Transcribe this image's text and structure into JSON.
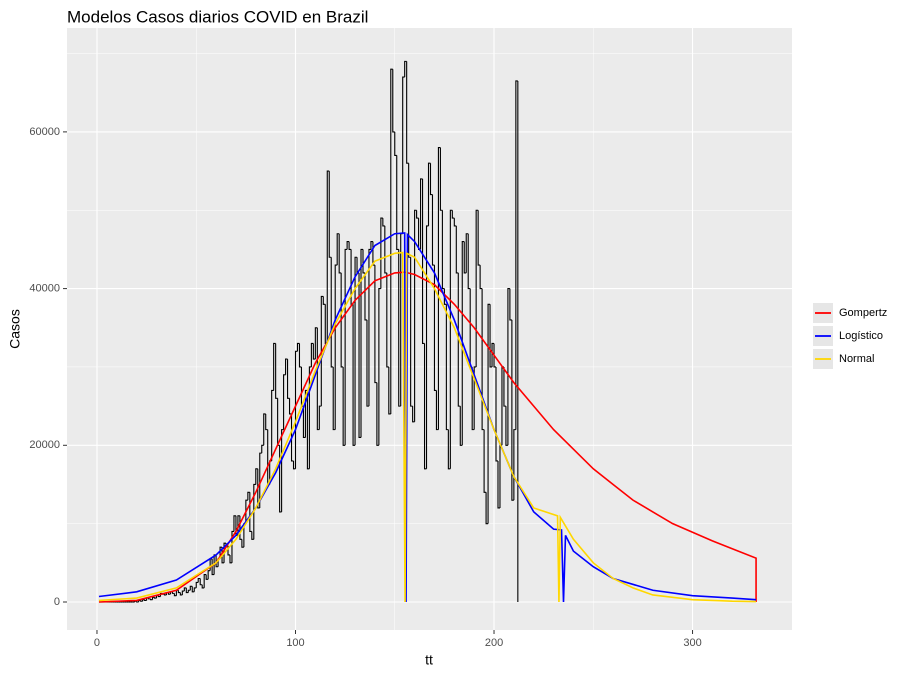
{
  "chart_data": {
    "type": "line",
    "title": "Modelos Casos diarios COVID en Brazil",
    "x_label": "tt",
    "y_label": "Casos",
    "xlim": [
      -15.1,
      350.1
    ],
    "ylim": [
      -3574,
      73260
    ],
    "xticks": [
      0,
      100,
      200,
      300
    ],
    "yticks": [
      0,
      20000,
      40000,
      60000
    ],
    "x_minor_grid": [
      50,
      150,
      250
    ],
    "y_minor_grid": [
      10000,
      30000,
      50000,
      70000
    ],
    "grid": true,
    "legend_position": "right",
    "observed": {
      "color": "#000000",
      "x": [
        1,
        2,
        3,
        4,
        5,
        6,
        7,
        8,
        9,
        10,
        11,
        12,
        13,
        14,
        15,
        16,
        17,
        18,
        19,
        20,
        21,
        22,
        23,
        24,
        25,
        26,
        27,
        28,
        29,
        30,
        31,
        32,
        33,
        34,
        35,
        36,
        37,
        38,
        39,
        40,
        41,
        42,
        43,
        44,
        45,
        46,
        47,
        48,
        49,
        50,
        51,
        52,
        53,
        54,
        55,
        56,
        57,
        58,
        59,
        60,
        61,
        62,
        63,
        64,
        65,
        66,
        67,
        68,
        69,
        70,
        71,
        72,
        73,
        74,
        75,
        76,
        77,
        78,
        79,
        80,
        81,
        82,
        83,
        84,
        85,
        86,
        87,
        88,
        89,
        90,
        91,
        92,
        93,
        94,
        95,
        96,
        97,
        98,
        99,
        100,
        101,
        102,
        103,
        104,
        105,
        106,
        107,
        108,
        109,
        110,
        111,
        112,
        113,
        114,
        115,
        116,
        117,
        118,
        119,
        120,
        121,
        122,
        123,
        124,
        125,
        126,
        127,
        128,
        129,
        130,
        131,
        132,
        133,
        134,
        135,
        136,
        137,
        138,
        139,
        140,
        141,
        142,
        143,
        144,
        145,
        146,
        147,
        148,
        149,
        150,
        151,
        152,
        153,
        154,
        155,
        156,
        157,
        158,
        159,
        160,
        161,
        162,
        163,
        164,
        165,
        166,
        167,
        168,
        169,
        170,
        171,
        172,
        173,
        174,
        175,
        176,
        177,
        178,
        179,
        180,
        181,
        182,
        183,
        184,
        185,
        186,
        187,
        188,
        189,
        190,
        191,
        192,
        193,
        194,
        195,
        196,
        197,
        198,
        199,
        200,
        201,
        202,
        203,
        204,
        205,
        206,
        207,
        208,
        209,
        210,
        211,
        212
      ],
      "values": [
        0,
        0,
        0,
        0,
        0,
        0,
        0,
        0,
        0,
        0,
        0,
        0,
        0,
        0,
        0,
        0,
        0,
        0,
        100,
        0,
        200,
        100,
        300,
        200,
        500,
        400,
        300,
        600,
        500,
        800,
        700,
        1100,
        1000,
        900,
        1200,
        1000,
        1300,
        1100,
        800,
        1500,
        1200,
        900,
        1400,
        1800,
        1200,
        1500,
        2000,
        1300,
        1800,
        2500,
        3000,
        2200,
        1800,
        3500,
        2900,
        4000,
        5500,
        3500,
        6000,
        4500,
        5500,
        7000,
        5000,
        7500,
        7200,
        6000,
        5000,
        9000,
        11000,
        8500,
        11000,
        8000,
        7000,
        10000,
        13000,
        14000,
        9000,
        8000,
        15000,
        17000,
        12000,
        19000,
        20000,
        24000,
        22000,
        15000,
        18000,
        27000,
        33000,
        26000,
        20000,
        11500,
        22000,
        29000,
        31000,
        26000,
        24000,
        18000,
        17000,
        32000,
        33000,
        30000,
        25000,
        21000,
        27000,
        17000,
        30000,
        33000,
        31000,
        35000,
        22000,
        25000,
        39000,
        38000,
        33000,
        55000,
        44000,
        30000,
        22000,
        43000,
        47000,
        42000,
        30000,
        20000,
        45000,
        46000,
        45000,
        38000,
        20000,
        44000,
        42000,
        21000,
        45000,
        42000,
        36000,
        25000,
        45000,
        46000,
        43000,
        28000,
        20000,
        40000,
        49000,
        48000,
        42000,
        30000,
        24000,
        68000,
        60000,
        57000,
        45000,
        25000,
        47000,
        67000,
        69000,
        56000,
        44000,
        25000,
        23000,
        50000,
        49000,
        45000,
        54000,
        33000,
        17000,
        48000,
        56000,
        52000,
        43000,
        27000,
        22000,
        58000,
        50000,
        40000,
        38000,
        22000,
        17000,
        50000,
        49000,
        48000,
        42000,
        25000,
        20000,
        46000,
        42000,
        47000,
        40000,
        30000,
        22000,
        30000,
        50000,
        43000,
        40000,
        22000,
        14000,
        10000,
        38000,
        30000,
        33000,
        30000,
        18000,
        12000,
        20000,
        30000,
        25000,
        20000,
        40000,
        36000,
        13000,
        22000,
        66500,
        0
      ]
    },
    "series": [
      {
        "name": "Gompertz",
        "color": "#ff0000",
        "x": [
          1,
          20,
          40,
          60,
          70,
          80,
          90,
          100,
          110,
          120,
          130,
          140,
          150,
          155,
          160,
          170,
          180,
          190,
          200,
          210,
          220,
          230,
          240,
          250,
          260,
          270,
          280,
          290,
          300,
          310,
          320,
          332,
          332
        ],
        "values": [
          0,
          200,
          1500,
          5000,
          9000,
          14000,
          19500,
          25000,
          30500,
          35000,
          38500,
          41000,
          42000,
          42100,
          41800,
          40500,
          38000,
          35000,
          31500,
          28000,
          25000,
          22000,
          19500,
          17000,
          15000,
          13000,
          11500,
          10000,
          8900,
          7800,
          6800,
          5600,
          0
        ]
      },
      {
        "name": "Logístico",
        "color": "#0000ff",
        "x": [
          1,
          20,
          40,
          60,
          70,
          80,
          90,
          100,
          110,
          120,
          130,
          140,
          150,
          155,
          155.7,
          156.4,
          160,
          170,
          180,
          190,
          200,
          210,
          220,
          230,
          234,
          235,
          236,
          240,
          250,
          260,
          280,
          300,
          320,
          332
        ],
        "values": [
          700,
          1300,
          2800,
          6000,
          8500,
          12000,
          16500,
          22000,
          29000,
          36000,
          41500,
          45500,
          47000,
          47100,
          0,
          46900,
          46000,
          42000,
          36000,
          29000,
          22000,
          16000,
          11500,
          9300,
          9200,
          0,
          8500,
          6500,
          4500,
          3000,
          1500,
          800,
          500,
          300
        ]
      },
      {
        "name": "Normal",
        "color": "#ffd700",
        "x": [
          1,
          20,
          40,
          60,
          70,
          80,
          90,
          100,
          110,
          120,
          130,
          140,
          150,
          154,
          155.2,
          156,
          160,
          170,
          180,
          190,
          200,
          210,
          220,
          232,
          232.7,
          233.4,
          240,
          250,
          260,
          270,
          280,
          300,
          320,
          332
        ],
        "values": [
          200,
          500,
          1800,
          5000,
          8000,
          12000,
          17000,
          23000,
          29500,
          35500,
          40000,
          43500,
          44500,
          44600,
          0,
          44500,
          44000,
          40000,
          35000,
          28500,
          22000,
          16000,
          12000,
          11000,
          0,
          10800,
          8000,
          5000,
          3000,
          1800,
          900,
          300,
          100,
          50
        ]
      }
    ]
  }
}
